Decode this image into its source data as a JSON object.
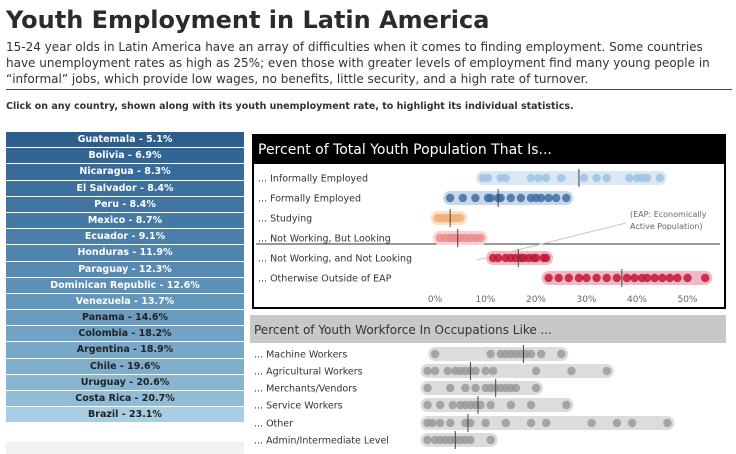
{
  "header": {
    "title": "Youth Employment in Latin America",
    "subtitle": "15-24 year olds in Latin America have an array of difficulties when it comes to finding employment. Some countries have unemployment rates as high as 25%; even those with greater levels of employment find many young people in “informal” jobs, which provide low wages, no benefits, little security, and a high rate of turnover.",
    "instruction": "Click on any country, shown along with its youth unemployment rate, to highlight its individual statistics."
  },
  "countries": [
    {
      "label": "Guatemala - 5.1%",
      "bg": "#2e5e8e",
      "fg": "#ffffff"
    },
    {
      "label": "Bolivia - 6.9%",
      "bg": "#336594",
      "fg": "#ffffff"
    },
    {
      "label": "Nicaragua - 8.3%",
      "bg": "#386b99",
      "fg": "#ffffff"
    },
    {
      "label": "El Salvador - 8.4%",
      "bg": "#3c709d",
      "fg": "#ffffff"
    },
    {
      "label": "Peru - 8.4%",
      "bg": "#4174a1",
      "fg": "#ffffff"
    },
    {
      "label": "Mexico - 8.7%",
      "bg": "#4579a5",
      "fg": "#ffffff"
    },
    {
      "label": "Ecuador - 9.1%",
      "bg": "#4b7eaa",
      "fg": "#ffffff"
    },
    {
      "label": "Honduras - 11.9%",
      "bg": "#5084ae",
      "fg": "#ffffff"
    },
    {
      "label": "Paraguay - 12.3%",
      "bg": "#568ab2",
      "fg": "#ffffff"
    },
    {
      "label": "Dominican Republic - 12.6%",
      "bg": "#5c90b7",
      "fg": "#ffffff"
    },
    {
      "label": "Venezuela - 13.7%",
      "bg": "#6296bb",
      "fg": "#ffffff"
    },
    {
      "label": "Panama - 14.6%",
      "bg": "#699cc0",
      "fg": "#222222"
    },
    {
      "label": "Colombia - 18.2%",
      "bg": "#70a2c4",
      "fg": "#222222"
    },
    {
      "label": "Argentina - 18.9%",
      "bg": "#77a8c9",
      "fg": "#222222"
    },
    {
      "label": "Chile - 19.6%",
      "bg": "#7faecd",
      "fg": "#222222"
    },
    {
      "label": "Uruguay - 20.6%",
      "bg": "#88b5d2",
      "fg": "#222222"
    },
    {
      "label": "Costa Rica - 20.7%",
      "bg": "#91bcd7",
      "fg": "#222222"
    },
    {
      "label": "Brazil - 23.1%",
      "bg": "#a8cde4",
      "fg": "#222222"
    }
  ],
  "chart_data": [
    {
      "type": "scatter",
      "title": "Percent of Total Youth Population That Is...",
      "xlim": [
        0,
        55
      ],
      "x_ticks": [
        "0%",
        "10%",
        "20%",
        "30%",
        "40%",
        "50%"
      ],
      "annotation": "(EAP: Economically Active Population)",
      "series": [
        {
          "label": "... Informally Employed",
          "color": "#9dc3e4",
          "band": "#dbe8f4",
          "median": 28.5,
          "values": [
            9.5,
            10.5,
            13,
            14,
            19,
            20.5,
            22,
            25,
            29.5,
            32,
            34,
            38.5,
            40,
            41,
            42,
            44.5
          ]
        },
        {
          "label": "... Formally Employed",
          "color": "#3f6fa6",
          "band": "#c7d8ea",
          "median": 12.5,
          "values": [
            3,
            5.5,
            8,
            10.5,
            11,
            12.5,
            13,
            15,
            17,
            19,
            20,
            21,
            22.5,
            24,
            26
          ]
        },
        {
          "label": "... Studying",
          "color": "#f0b27a",
          "band": "#fbe1c7",
          "median": 3,
          "values": [
            0.5,
            1,
            1.5,
            2,
            2.5,
            3,
            3.5,
            4,
            4.5,
            5
          ]
        },
        {
          "label": "... Not Working, But Looking",
          "color": "#e98b8b",
          "band": "#f8d2d2",
          "median": 4.5,
          "values": [
            1,
            2,
            3,
            3.5,
            4,
            5,
            6,
            7,
            8,
            9
          ]
        },
        {
          "label": "... Not Working, and Not Looking",
          "color": "#c0183b",
          "band": "#f0b8c4",
          "median": 16.5,
          "values": [
            11.5,
            12.5,
            14,
            15,
            16,
            17,
            17.5,
            18.5,
            19.5,
            20,
            21.5,
            22
          ]
        },
        {
          "label": "... Otherwise Outside of EAP",
          "color": "#c0183b",
          "band": "#f0b8c4",
          "median": 37,
          "values": [
            22.5,
            24.5,
            26.5,
            28.5,
            30,
            32,
            34,
            36,
            38,
            39.5,
            41,
            42,
            43.5,
            45,
            46.5,
            48,
            50,
            53.5
          ]
        }
      ]
    },
    {
      "type": "scatter",
      "title": "Percent of Youth Workforce In Occupations Like ...",
      "xlim": [
        0,
        55
      ],
      "series": [
        {
          "label": "... Machine Workers",
          "color": "#9a9a9a",
          "band": "#dcdcdc",
          "median": 19.5,
          "values": [
            2,
            13,
            15,
            16,
            17,
            18,
            19,
            20,
            21,
            23,
            27
          ]
        },
        {
          "label": "... Agricultural Workers",
          "color": "#9a9a9a",
          "band": "#dcdcdc",
          "median": 9,
          "values": [
            0.5,
            2,
            4.5,
            6,
            7,
            8,
            9,
            10,
            12,
            13.5,
            22,
            29,
            36
          ]
        },
        {
          "label": "... Merchants/Vendors",
          "color": "#9a9a9a",
          "band": "#dcdcdc",
          "median": 14,
          "values": [
            0.5,
            5,
            8,
            10,
            12,
            13,
            14,
            15,
            16,
            17,
            18,
            22
          ]
        },
        {
          "label": "... Service Workers",
          "color": "#9a9a9a",
          "band": "#dcdcdc",
          "median": 10.5,
          "values": [
            0.5,
            3,
            5.5,
            7,
            8,
            9,
            10,
            11,
            13,
            17,
            21,
            28
          ]
        },
        {
          "label": "... Other",
          "color": "#9a9a9a",
          "band": "#dcdcdc",
          "median": 8.5,
          "values": [
            0.5,
            1.5,
            3,
            5,
            8,
            9,
            12,
            16,
            21,
            24,
            33,
            38,
            41,
            48
          ]
        },
        {
          "label": "... Admin/Intermediate Level",
          "color": "#9a9a9a",
          "band": "#dcdcdc",
          "median": 6,
          "values": [
            0.5,
            2,
            3,
            4,
            5,
            6,
            7,
            8,
            9,
            13
          ]
        }
      ]
    }
  ]
}
